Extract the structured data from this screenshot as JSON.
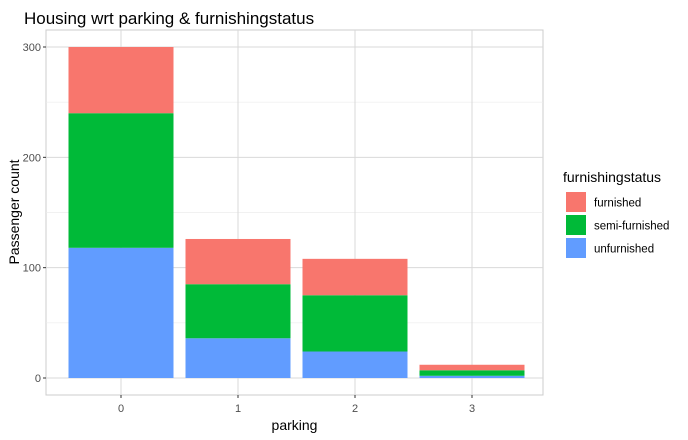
{
  "chart_data": {
    "type": "bar",
    "stacked": true,
    "title": "Housing wrt parking & furnishingstatus",
    "xlabel": "parking",
    "ylabel": "Passenger count",
    "categories": [
      "0",
      "1",
      "2",
      "3"
    ],
    "ylim": [
      0,
      300
    ],
    "yticks": [
      0,
      100,
      200,
      300
    ],
    "grid": true,
    "legend": {
      "title": "furnishingstatus",
      "position": "right"
    },
    "series": [
      {
        "name": "unfurnished",
        "color": "#619CFF",
        "values": [
          118,
          36,
          24,
          2
        ]
      },
      {
        "name": "semi-furnished",
        "color": "#00BA38",
        "values": [
          122,
          49,
          51,
          5
        ]
      },
      {
        "name": "furnished",
        "color": "#F8766D",
        "values": [
          60,
          41,
          33,
          5
        ]
      }
    ]
  }
}
